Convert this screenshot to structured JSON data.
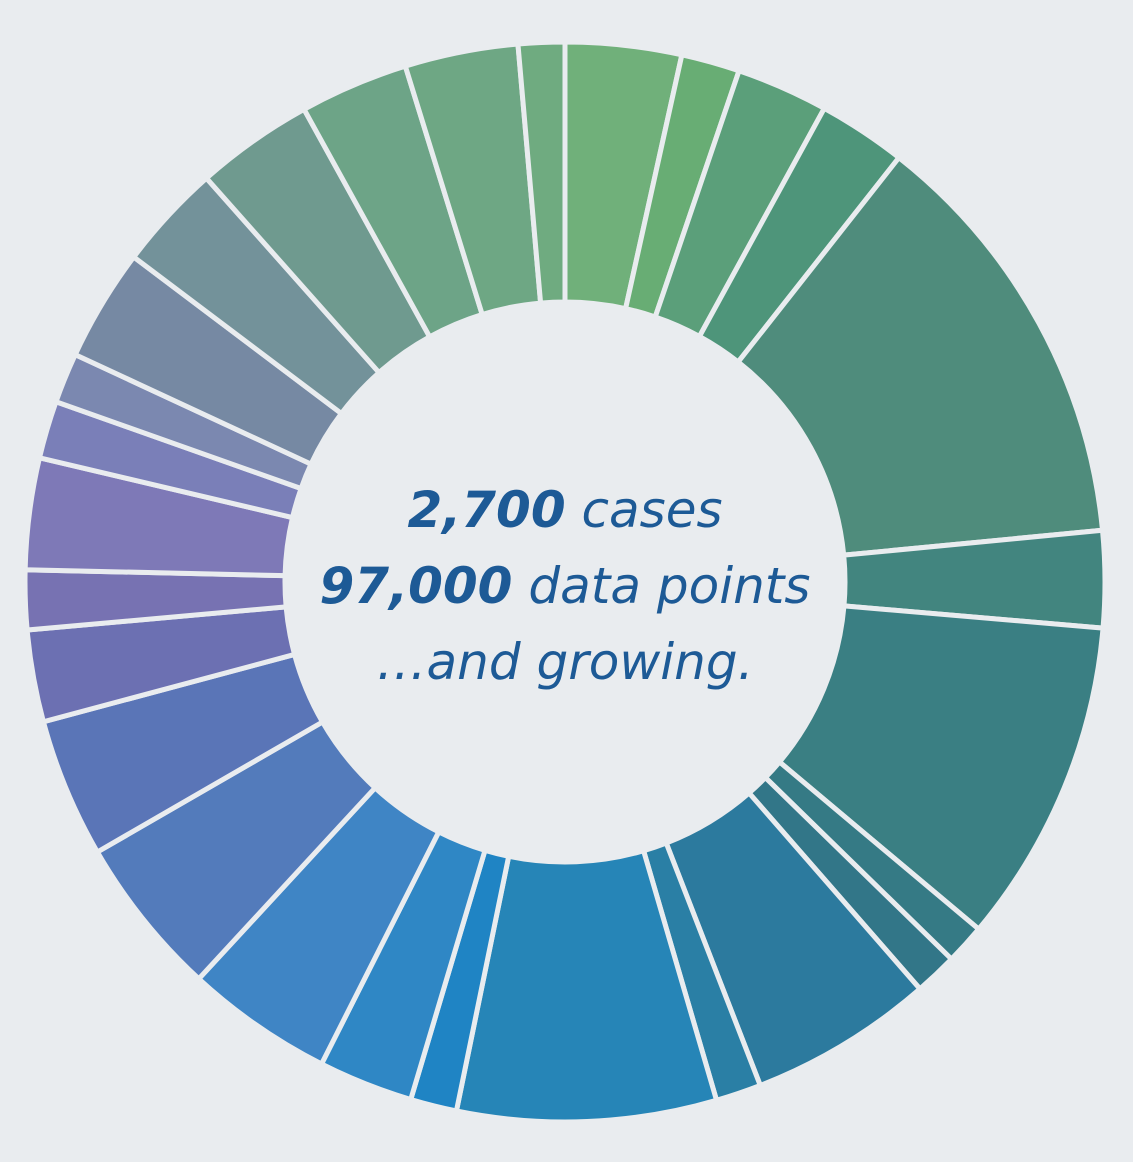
{
  "chart_data": {
    "type": "donut",
    "values": [
      12.5,
      6.3,
      9.9,
      9.5,
      46.3,
      10.4,
      35.1,
      4.3,
      4.6,
      19.9,
      4.9,
      27.9,
      5,
      10.2,
      15.9,
      17.3,
      15,
      9.9,
      6.4,
      12,
      6.2,
      5.4,
      12.1,
      11.4,
      12.7,
      11.7,
      12.2,
      5
    ],
    "colors": [
      "#70b07a",
      "#68ad74",
      "#5b9f7a",
      "#4e957a",
      "#4f8c7c",
      "#42857f",
      "#3a7f83",
      "#357a85",
      "#327688",
      "#2c7a9e",
      "#2a7fa5",
      "#2685b7",
      "#1f84c4",
      "#2f87c5",
      "#3f85c5",
      "#537bbb",
      "#5a75b7",
      "#6c70b2",
      "#7772b2",
      "#7e79b7",
      "#7a7fb8",
      "#7b88b0",
      "#7689a3",
      "#73929a",
      "#6f9a8f",
      "#6da487",
      "#6ea784",
      "#6fab80"
    ],
    "center_text": [
      {
        "bold": "2,700",
        "rest": "cases"
      },
      {
        "bold": "97,000",
        "rest": "data points"
      },
      {
        "bold": "",
        "rest": "…and growing."
      }
    ]
  }
}
